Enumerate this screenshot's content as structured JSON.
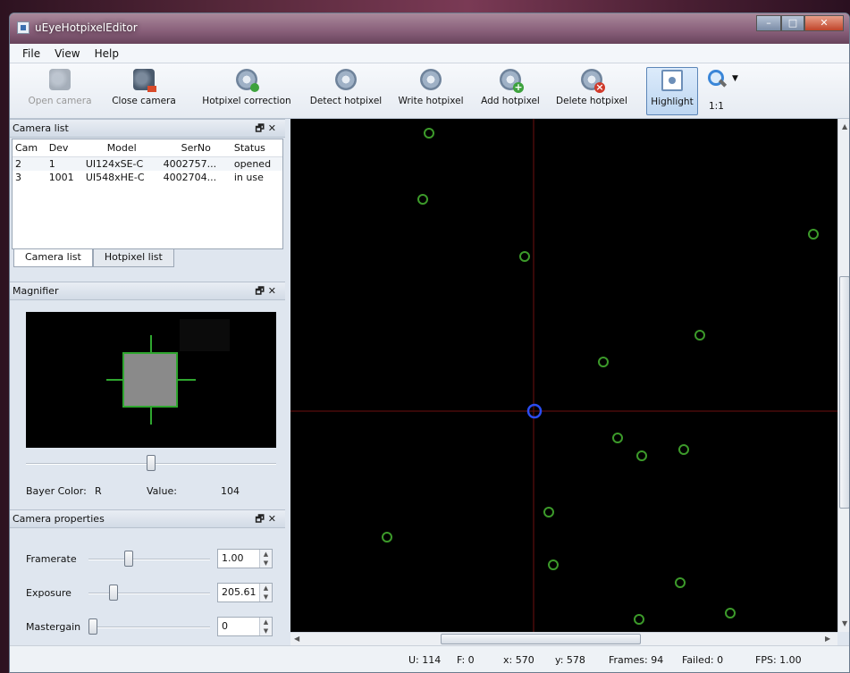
{
  "window": {
    "title": "uEyeHotpixelEditor"
  },
  "menu": [
    "File",
    "View",
    "Help"
  ],
  "toolbar": {
    "open_camera": "Open camera",
    "close_camera": "Close camera",
    "hotpixel_correction": "Hotpixel correction",
    "detect_hotpixel": "Detect hotpixel",
    "write_hotpixel": "Write hotpixel",
    "add_hotpixel": "Add hotpixel",
    "delete_hotpixel": "Delete hotpixel",
    "highlight": "Highlight",
    "zoom_label": "1:1"
  },
  "camera_list": {
    "title": "Camera list",
    "columns": [
      "Cam",
      "Dev",
      "Model",
      "SerNo",
      "Status"
    ],
    "rows": [
      [
        "2",
        "1",
        "UI124xSE-C",
        "4002757...",
        "opened"
      ],
      [
        "3",
        "1001",
        "UI548xHE-C",
        "4002704...",
        "in use"
      ]
    ],
    "tabs": [
      "Camera list",
      "Hotpixel list"
    ]
  },
  "magnifier": {
    "title": "Magnifier",
    "bayer_label": "Bayer Color:",
    "bayer_value": "R",
    "value_label": "Value:",
    "value": "104",
    "zoom_fraction": 0.5
  },
  "camera_properties": {
    "title": "Camera properties",
    "framerate_label": "Framerate",
    "framerate_value": "1.00",
    "exposure_label": "Exposure",
    "exposure_value": "205.61",
    "mastergain_label": "Mastergain",
    "mastergain_value": "0"
  },
  "colors": {
    "hotpixel": "#3c9a2a",
    "selected": "#2b4cf0",
    "crosshair": "#6e0f0f"
  },
  "status": {
    "u": "U: 114",
    "f": "F: 0",
    "x": "x: 570",
    "y": "y: 578",
    "frames": "Frames: 94",
    "failed": "Failed: 0",
    "fps": "FPS: 1.00"
  }
}
